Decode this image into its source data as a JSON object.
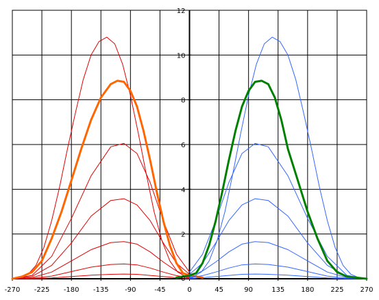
{
  "chart_data": {
    "type": "line",
    "title": "",
    "xlabel": "",
    "ylabel": "",
    "xlim": [
      -270,
      270
    ],
    "ylim": [
      0,
      12
    ],
    "grid": true,
    "legend": "none",
    "x_ticks": [
      -270,
      -225,
      -180,
      -135,
      -90,
      -45,
      0,
      45,
      90,
      135,
      180,
      225,
      270
    ],
    "x_tick_labels": [
      "-270",
      "-225",
      "-180",
      "-135",
      "-90",
      "-45",
      "0",
      "45",
      "90",
      "135",
      "180",
      "225",
      "270"
    ],
    "y_ticks": [
      2,
      4,
      6,
      8,
      10,
      12
    ],
    "y_tick_labels": [
      "2",
      "4",
      "6",
      "8",
      "10",
      "12"
    ],
    "y_zero_label": "0",
    "series": [
      {
        "group": "left",
        "color": "#e00000",
        "width": 1,
        "peak_x": -133,
        "peak_y": 10.8,
        "x": [
          -270,
          -258,
          -246,
          -234,
          -222,
          -210,
          -198,
          -186,
          -174,
          -162,
          -150,
          -138,
          -126,
          -114,
          -102,
          -90,
          -78,
          -66,
          -54,
          -42,
          -30,
          -18,
          -6,
          6
        ],
        "y": [
          0,
          0.05,
          0.2,
          0.6,
          1.4,
          2.6,
          4.1,
          5.8,
          7.4,
          8.9,
          10.0,
          10.6,
          10.8,
          10.5,
          9.6,
          8.2,
          6.5,
          4.7,
          3.0,
          1.7,
          0.8,
          0.3,
          0.1,
          0.02
        ]
      },
      {
        "group": "left",
        "color": "#e00000",
        "width": 1,
        "x": [
          -270,
          -240,
          -210,
          -180,
          -150,
          -120,
          -100,
          -80,
          -60,
          -40,
          -20,
          0
        ],
        "y": [
          0,
          0.15,
          1.0,
          2.7,
          4.6,
          5.9,
          6.05,
          5.6,
          4.3,
          2.6,
          1.1,
          0.3
        ]
      },
      {
        "group": "left",
        "color": "#e00000",
        "width": 1,
        "x": [
          -270,
          -240,
          -210,
          -180,
          -150,
          -120,
          -100,
          -80,
          -60,
          -40,
          -20,
          0
        ],
        "y": [
          0,
          0.1,
          0.6,
          1.6,
          2.8,
          3.5,
          3.58,
          3.3,
          2.6,
          1.6,
          0.7,
          0.2
        ]
      },
      {
        "group": "left",
        "color": "#e00000",
        "width": 1,
        "x": [
          -270,
          -240,
          -210,
          -180,
          -150,
          -120,
          -100,
          -80,
          -60,
          -40,
          -20,
          0
        ],
        "y": [
          0,
          0.05,
          0.3,
          0.8,
          1.3,
          1.62,
          1.66,
          1.55,
          1.2,
          0.75,
          0.35,
          0.1
        ]
      },
      {
        "group": "left",
        "color": "#e00000",
        "width": 1,
        "x": [
          -270,
          -240,
          -210,
          -180,
          -150,
          -120,
          -100,
          -80,
          -60,
          -40,
          -20,
          0
        ],
        "y": [
          0,
          0.02,
          0.12,
          0.32,
          0.52,
          0.64,
          0.66,
          0.62,
          0.48,
          0.3,
          0.14,
          0.04
        ]
      },
      {
        "group": "left",
        "color": "#e00000",
        "width": 1,
        "x": [
          -270,
          -240,
          -210,
          -180,
          -150,
          -120,
          -100,
          -80,
          -60,
          -40,
          -20,
          0
        ],
        "y": [
          0,
          0.01,
          0.04,
          0.1,
          0.16,
          0.2,
          0.21,
          0.2,
          0.15,
          0.1,
          0.05,
          0.01
        ]
      },
      {
        "group": "left",
        "color": "#ff6600",
        "width": 3,
        "x": [
          -270,
          -255,
          -240,
          -225,
          -210,
          -195,
          -180,
          -165,
          -150,
          -135,
          -120,
          -110,
          -100,
          -90,
          -80,
          -70,
          -60,
          -50,
          -40,
          -30,
          -20,
          -10,
          0,
          10,
          20
        ],
        "y": [
          0,
          0.1,
          0.3,
          0.8,
          1.8,
          3.0,
          4.4,
          5.8,
          7.1,
          8.1,
          8.7,
          8.85,
          8.8,
          8.4,
          7.7,
          6.6,
          5.3,
          3.9,
          2.6,
          1.5,
          0.7,
          0.25,
          0.15,
          0.1,
          0.05
        ]
      },
      {
        "group": "right",
        "color": "#3366ff",
        "width": 1,
        "x": [
          -6,
          6,
          18,
          30,
          42,
          54,
          66,
          78,
          90,
          102,
          114,
          126,
          138,
          150,
          162,
          174,
          186,
          198,
          210,
          222,
          234,
          246,
          258,
          270
        ],
        "y": [
          0.02,
          0.1,
          0.3,
          0.8,
          1.7,
          3.0,
          4.7,
          6.5,
          8.2,
          9.6,
          10.5,
          10.8,
          10.6,
          10.0,
          8.9,
          7.4,
          5.8,
          4.1,
          2.6,
          1.4,
          0.6,
          0.2,
          0.05,
          0
        ]
      },
      {
        "group": "right",
        "color": "#3366ff",
        "width": 1,
        "x": [
          0,
          20,
          40,
          60,
          80,
          100,
          120,
          150,
          180,
          210,
          240,
          270
        ],
        "y": [
          0.3,
          1.1,
          2.6,
          4.3,
          5.6,
          6.05,
          5.9,
          4.6,
          2.7,
          1.0,
          0.15,
          0
        ]
      },
      {
        "group": "right",
        "color": "#3366ff",
        "width": 1,
        "x": [
          0,
          20,
          40,
          60,
          80,
          100,
          120,
          150,
          180,
          210,
          240,
          270
        ],
        "y": [
          0.2,
          0.7,
          1.6,
          2.6,
          3.3,
          3.58,
          3.5,
          2.8,
          1.6,
          0.6,
          0.1,
          0
        ]
      },
      {
        "group": "right",
        "color": "#3366ff",
        "width": 1,
        "x": [
          0,
          20,
          40,
          60,
          80,
          100,
          120,
          150,
          180,
          210,
          240,
          270
        ],
        "y": [
          0.1,
          0.35,
          0.75,
          1.2,
          1.55,
          1.66,
          1.62,
          1.3,
          0.8,
          0.3,
          0.05,
          0
        ]
      },
      {
        "group": "right",
        "color": "#3366ff",
        "width": 1,
        "x": [
          0,
          20,
          40,
          60,
          80,
          100,
          120,
          150,
          180,
          210,
          240,
          270
        ],
        "y": [
          0.04,
          0.14,
          0.3,
          0.48,
          0.62,
          0.66,
          0.64,
          0.52,
          0.32,
          0.12,
          0.02,
          0
        ]
      },
      {
        "group": "right",
        "color": "#3366ff",
        "width": 1,
        "x": [
          0,
          20,
          40,
          60,
          80,
          100,
          120,
          150,
          180,
          210,
          240,
          270
        ],
        "y": [
          0.01,
          0.05,
          0.1,
          0.15,
          0.2,
          0.21,
          0.2,
          0.16,
          0.1,
          0.04,
          0.01,
          0
        ]
      },
      {
        "group": "right",
        "color": "#008000",
        "width": 3,
        "x": [
          -20,
          -10,
          0,
          10,
          20,
          30,
          40,
          50,
          60,
          70,
          80,
          90,
          100,
          110,
          120,
          130,
          140,
          150,
          165,
          180,
          195,
          210,
          225,
          240,
          255,
          270
        ],
        "y": [
          0.05,
          0.1,
          0.15,
          0.25,
          0.7,
          1.5,
          2.6,
          3.9,
          5.3,
          6.6,
          7.7,
          8.4,
          8.8,
          8.85,
          8.7,
          8.1,
          7.1,
          5.8,
          4.4,
          3.0,
          1.8,
          0.8,
          0.3,
          0.1,
          0.05,
          0
        ]
      }
    ]
  }
}
